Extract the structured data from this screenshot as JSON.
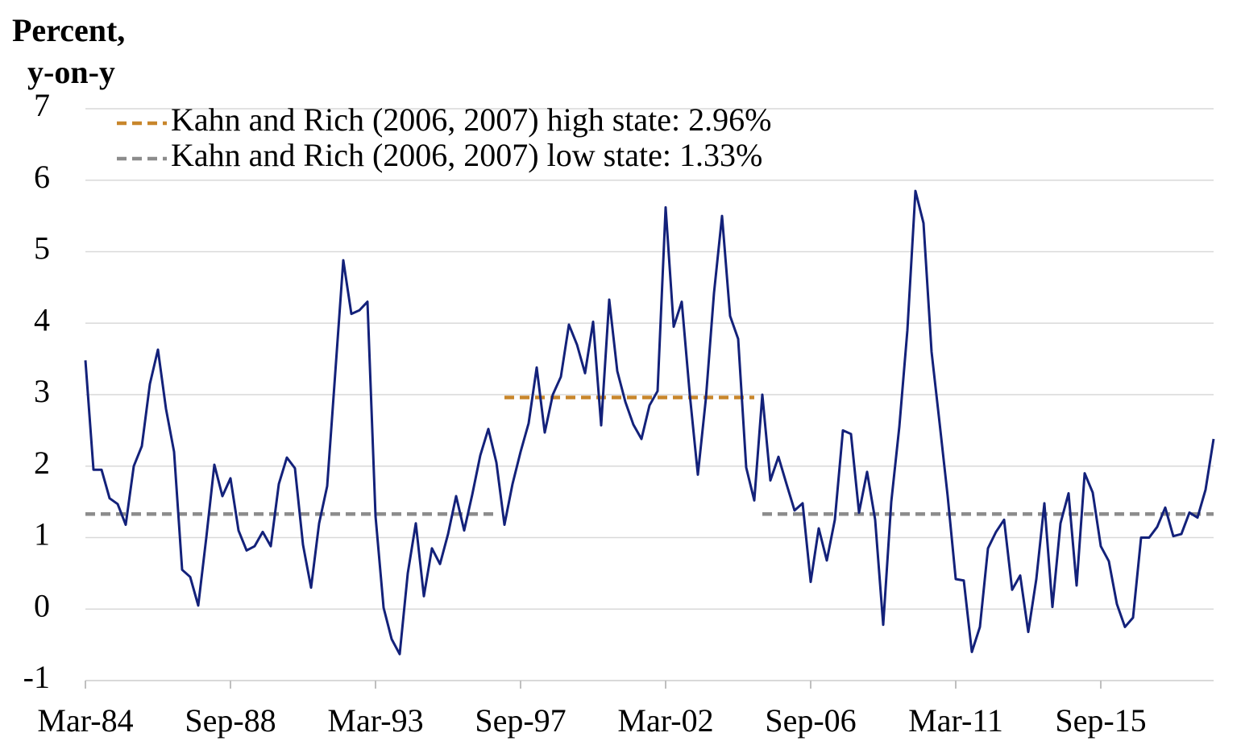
{
  "chart_data": {
    "type": "line",
    "ylabel_lines": [
      "Percent,",
      "y-on-y"
    ],
    "categories": [
      "Mar-84",
      null,
      null,
      null,
      null,
      null,
      null,
      null,
      null,
      null,
      null,
      null,
      null,
      null,
      null,
      null,
      null,
      null,
      "Sep-88",
      null,
      null,
      null,
      null,
      null,
      null,
      null,
      null,
      null,
      null,
      null,
      null,
      null,
      null,
      null,
      null,
      null,
      "Mar-93",
      null,
      null,
      null,
      null,
      null,
      null,
      null,
      null,
      null,
      null,
      null,
      null,
      null,
      null,
      null,
      null,
      null,
      "Sep-97",
      null,
      null,
      null,
      null,
      null,
      null,
      null,
      null,
      null,
      null,
      null,
      null,
      null,
      null,
      null,
      null,
      null,
      "Mar-02",
      null,
      null,
      null,
      null,
      null,
      null,
      null,
      null,
      null,
      null,
      null,
      null,
      null,
      null,
      null,
      null,
      null,
      "Sep-06",
      null,
      null,
      null,
      null,
      null,
      null,
      null,
      null,
      null,
      null,
      null,
      null,
      null,
      null,
      null,
      null,
      null,
      "Mar-11",
      null,
      null,
      null,
      null,
      null,
      null,
      null,
      null,
      null,
      null,
      null,
      null,
      null,
      null,
      null,
      null,
      null,
      "Sep-15",
      null,
      null,
      null,
      null,
      null,
      null,
      null,
      null,
      null,
      null,
      null,
      null,
      null,
      null
    ],
    "series": [
      {
        "color": "#13217a",
        "dashed": false,
        "values": [
          3.48,
          1.95,
          1.95,
          1.55,
          1.47,
          1.18,
          2.0,
          2.28,
          3.15,
          3.63,
          2.8,
          2.2,
          0.55,
          0.45,
          0.05,
          1.0,
          2.02,
          1.58,
          1.83,
          1.1,
          0.82,
          0.88,
          1.08,
          0.88,
          1.75,
          2.12,
          1.97,
          0.9,
          0.3,
          1.2,
          1.72,
          3.3,
          4.88,
          4.13,
          4.18,
          4.3,
          1.3,
          0.02,
          -0.42,
          -0.63,
          0.5,
          1.2,
          0.18,
          0.85,
          0.63,
          1.05,
          1.58,
          1.1,
          1.6,
          2.15,
          2.52,
          2.05,
          1.18,
          1.75,
          2.2,
          2.6,
          3.38,
          2.47,
          3.0,
          3.25,
          3.98,
          3.7,
          3.3,
          4.02,
          2.57,
          4.33,
          3.33,
          2.9,
          2.58,
          2.38,
          2.85,
          3.05,
          5.62,
          3.95,
          4.3,
          3.0,
          1.88,
          2.95,
          4.42,
          5.5,
          4.1,
          3.78,
          1.98,
          1.52,
          3.0,
          1.8,
          2.13,
          1.75,
          1.38,
          1.48,
          0.38,
          1.13,
          0.68,
          1.25,
          2.5,
          2.45,
          1.35,
          1.92,
          1.25,
          -0.22,
          1.5,
          2.55,
          3.9,
          5.85,
          5.4,
          3.6,
          2.6,
          1.58,
          0.42,
          0.4,
          -0.6,
          -0.25,
          0.85,
          1.08,
          1.25,
          0.27,
          0.47,
          -0.32,
          0.42,
          1.48,
          0.03,
          1.2,
          1.62,
          0.33,
          1.9,
          1.63,
          0.88,
          0.67,
          0.07,
          -0.25,
          -0.12,
          1.0,
          1.0,
          1.15,
          1.42,
          1.02,
          1.05,
          1.35,
          1.28,
          1.67,
          2.38
        ]
      },
      {
        "name": "Kahn and Rich (2006, 2007) high state: 2.96%",
        "color": "#c8862b",
        "dashed": true,
        "values": [
          null,
          null,
          null,
          null,
          null,
          null,
          null,
          null,
          null,
          null,
          null,
          null,
          null,
          null,
          null,
          null,
          null,
          null,
          null,
          null,
          null,
          null,
          null,
          null,
          null,
          null,
          null,
          null,
          null,
          null,
          null,
          null,
          null,
          null,
          null,
          null,
          null,
          null,
          null,
          null,
          null,
          null,
          null,
          null,
          null,
          null,
          null,
          null,
          null,
          null,
          null,
          null,
          2.96,
          2.96,
          2.96,
          2.96,
          2.96,
          2.96,
          2.96,
          2.96,
          2.96,
          2.96,
          2.96,
          2.96,
          2.96,
          2.96,
          2.96,
          2.96,
          2.96,
          2.96,
          2.96,
          2.96,
          2.96,
          2.96,
          2.96,
          2.96,
          2.96,
          2.96,
          2.96,
          2.96,
          2.96,
          2.96,
          2.96,
          2.96,
          null,
          null,
          null,
          null,
          null,
          null,
          null,
          null,
          null,
          null,
          null,
          null,
          null,
          null,
          null,
          null,
          null,
          null,
          null,
          null,
          null,
          null,
          null,
          null,
          null,
          null,
          null,
          null,
          null,
          null,
          null,
          null,
          null,
          null,
          null,
          null,
          null,
          null,
          null,
          null,
          null,
          null,
          null,
          null,
          null,
          null,
          null,
          null,
          null,
          null,
          null,
          null,
          null,
          null,
          null,
          null,
          null
        ]
      },
      {
        "name": "Kahn and Rich (2006, 2007) low state: 1.33%",
        "color": "#8c8c8c",
        "dashed": true,
        "values": [
          1.33,
          1.33,
          1.33,
          1.33,
          1.33,
          1.33,
          1.33,
          1.33,
          1.33,
          1.33,
          1.33,
          1.33,
          1.33,
          1.33,
          1.33,
          1.33,
          1.33,
          1.33,
          1.33,
          1.33,
          1.33,
          1.33,
          1.33,
          1.33,
          1.33,
          1.33,
          1.33,
          1.33,
          1.33,
          1.33,
          1.33,
          1.33,
          1.33,
          1.33,
          1.33,
          1.33,
          1.33,
          1.33,
          1.33,
          1.33,
          1.33,
          1.33,
          1.33,
          1.33,
          1.33,
          1.33,
          1.33,
          1.33,
          1.33,
          1.33,
          1.33,
          1.33,
          null,
          null,
          null,
          null,
          null,
          null,
          null,
          null,
          null,
          null,
          null,
          null,
          null,
          null,
          null,
          null,
          null,
          null,
          null,
          null,
          null,
          null,
          null,
          null,
          null,
          null,
          null,
          null,
          null,
          null,
          null,
          null,
          1.33,
          1.33,
          1.33,
          1.33,
          1.33,
          1.33,
          1.33,
          1.33,
          1.33,
          1.33,
          1.33,
          1.33,
          1.33,
          1.33,
          1.33,
          1.33,
          1.33,
          1.33,
          1.33,
          1.33,
          1.33,
          1.33,
          1.33,
          1.33,
          1.33,
          1.33,
          1.33,
          1.33,
          1.33,
          1.33,
          1.33,
          1.33,
          1.33,
          1.33,
          1.33,
          1.33,
          1.33,
          1.33,
          1.33,
          1.33,
          1.33,
          1.33,
          1.33,
          1.33,
          1.33,
          1.33,
          1.33,
          1.33,
          1.33,
          1.33,
          1.33,
          1.33,
          1.33,
          1.33,
          1.33,
          1.33,
          1.33
        ]
      }
    ],
    "ylim": [
      -1,
      7
    ],
    "yticks": [
      -1,
      0,
      1,
      2,
      3,
      4,
      5,
      6,
      7
    ],
    "grid": true,
    "legend": "top-left"
  }
}
